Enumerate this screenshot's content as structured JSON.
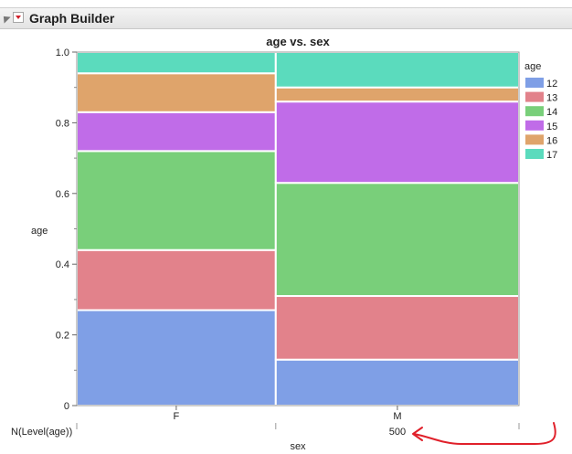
{
  "app": {
    "title": "Graph Builder"
  },
  "chart_data": {
    "type": "mosaic",
    "title": "age vs. sex",
    "xlabel": "sex",
    "ylabel": "age",
    "ylim": [
      0,
      1
    ],
    "y_ticks": [
      "0",
      "0.2",
      "0.4",
      "0.6",
      "0.8",
      "1.0"
    ],
    "categories": [
      "F",
      "M"
    ],
    "category_widths": [
      0.45,
      0.55
    ],
    "legend": {
      "title": "age",
      "placement": "right",
      "levels": [
        "12",
        "13",
        "14",
        "15",
        "16",
        "17"
      ]
    },
    "colors": {
      "12": "#7f9fe6",
      "13": "#e2828b",
      "14": "#79cf7a",
      "15": "#c06ce8",
      "16": "#dfa46b",
      "17": "#5bdbbd"
    },
    "series": [
      {
        "name": "12",
        "values": [
          0.27,
          0.13
        ]
      },
      {
        "name": "13",
        "values": [
          0.17,
          0.18
        ]
      },
      {
        "name": "14",
        "values": [
          0.28,
          0.32
        ]
      },
      {
        "name": "15",
        "values": [
          0.11,
          0.23
        ]
      },
      {
        "name": "16",
        "values": [
          0.11,
          0.04
        ]
      },
      {
        "name": "17",
        "values": [
          0.06,
          0.1
        ]
      }
    ],
    "summary_row": {
      "label": "N(Level(age))",
      "values": [
        "",
        "500"
      ]
    }
  },
  "annotation": {
    "color": "#e0202a",
    "icon": "red-curved-arrow"
  }
}
